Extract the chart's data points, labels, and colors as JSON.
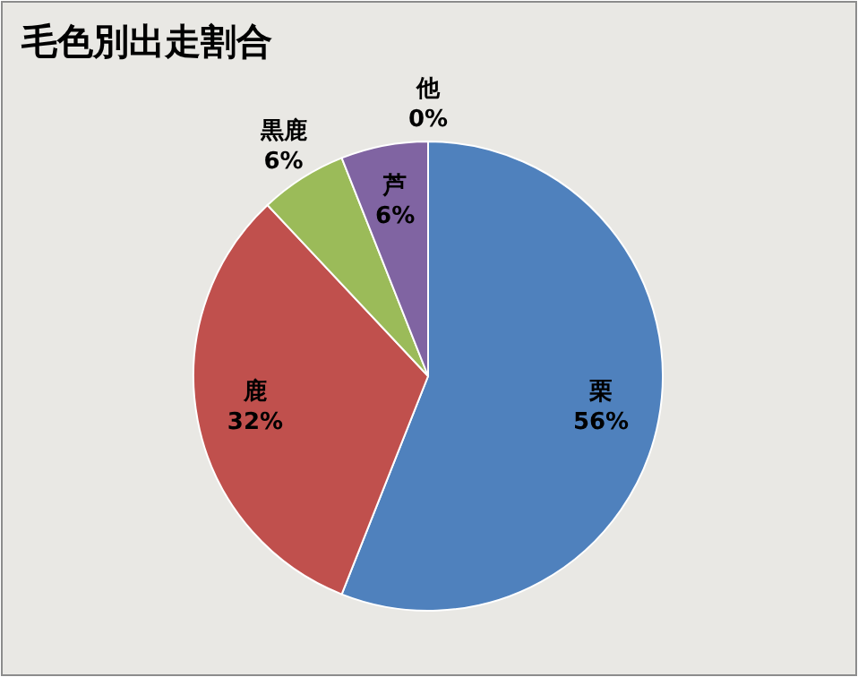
{
  "chart_data": {
    "type": "pie",
    "title": "毛色別出走割合",
    "categories": [
      "栗",
      "鹿",
      "黒鹿",
      "芦",
      "他"
    ],
    "values": [
      56,
      32,
      6,
      6,
      0
    ],
    "value_labels": [
      "56%",
      "32%",
      "6%",
      "6%",
      "0%"
    ],
    "colors": [
      "#4f81bd",
      "#c0504d",
      "#9bbb59",
      "#8064a2",
      "#4bacc6"
    ],
    "legend": false
  }
}
